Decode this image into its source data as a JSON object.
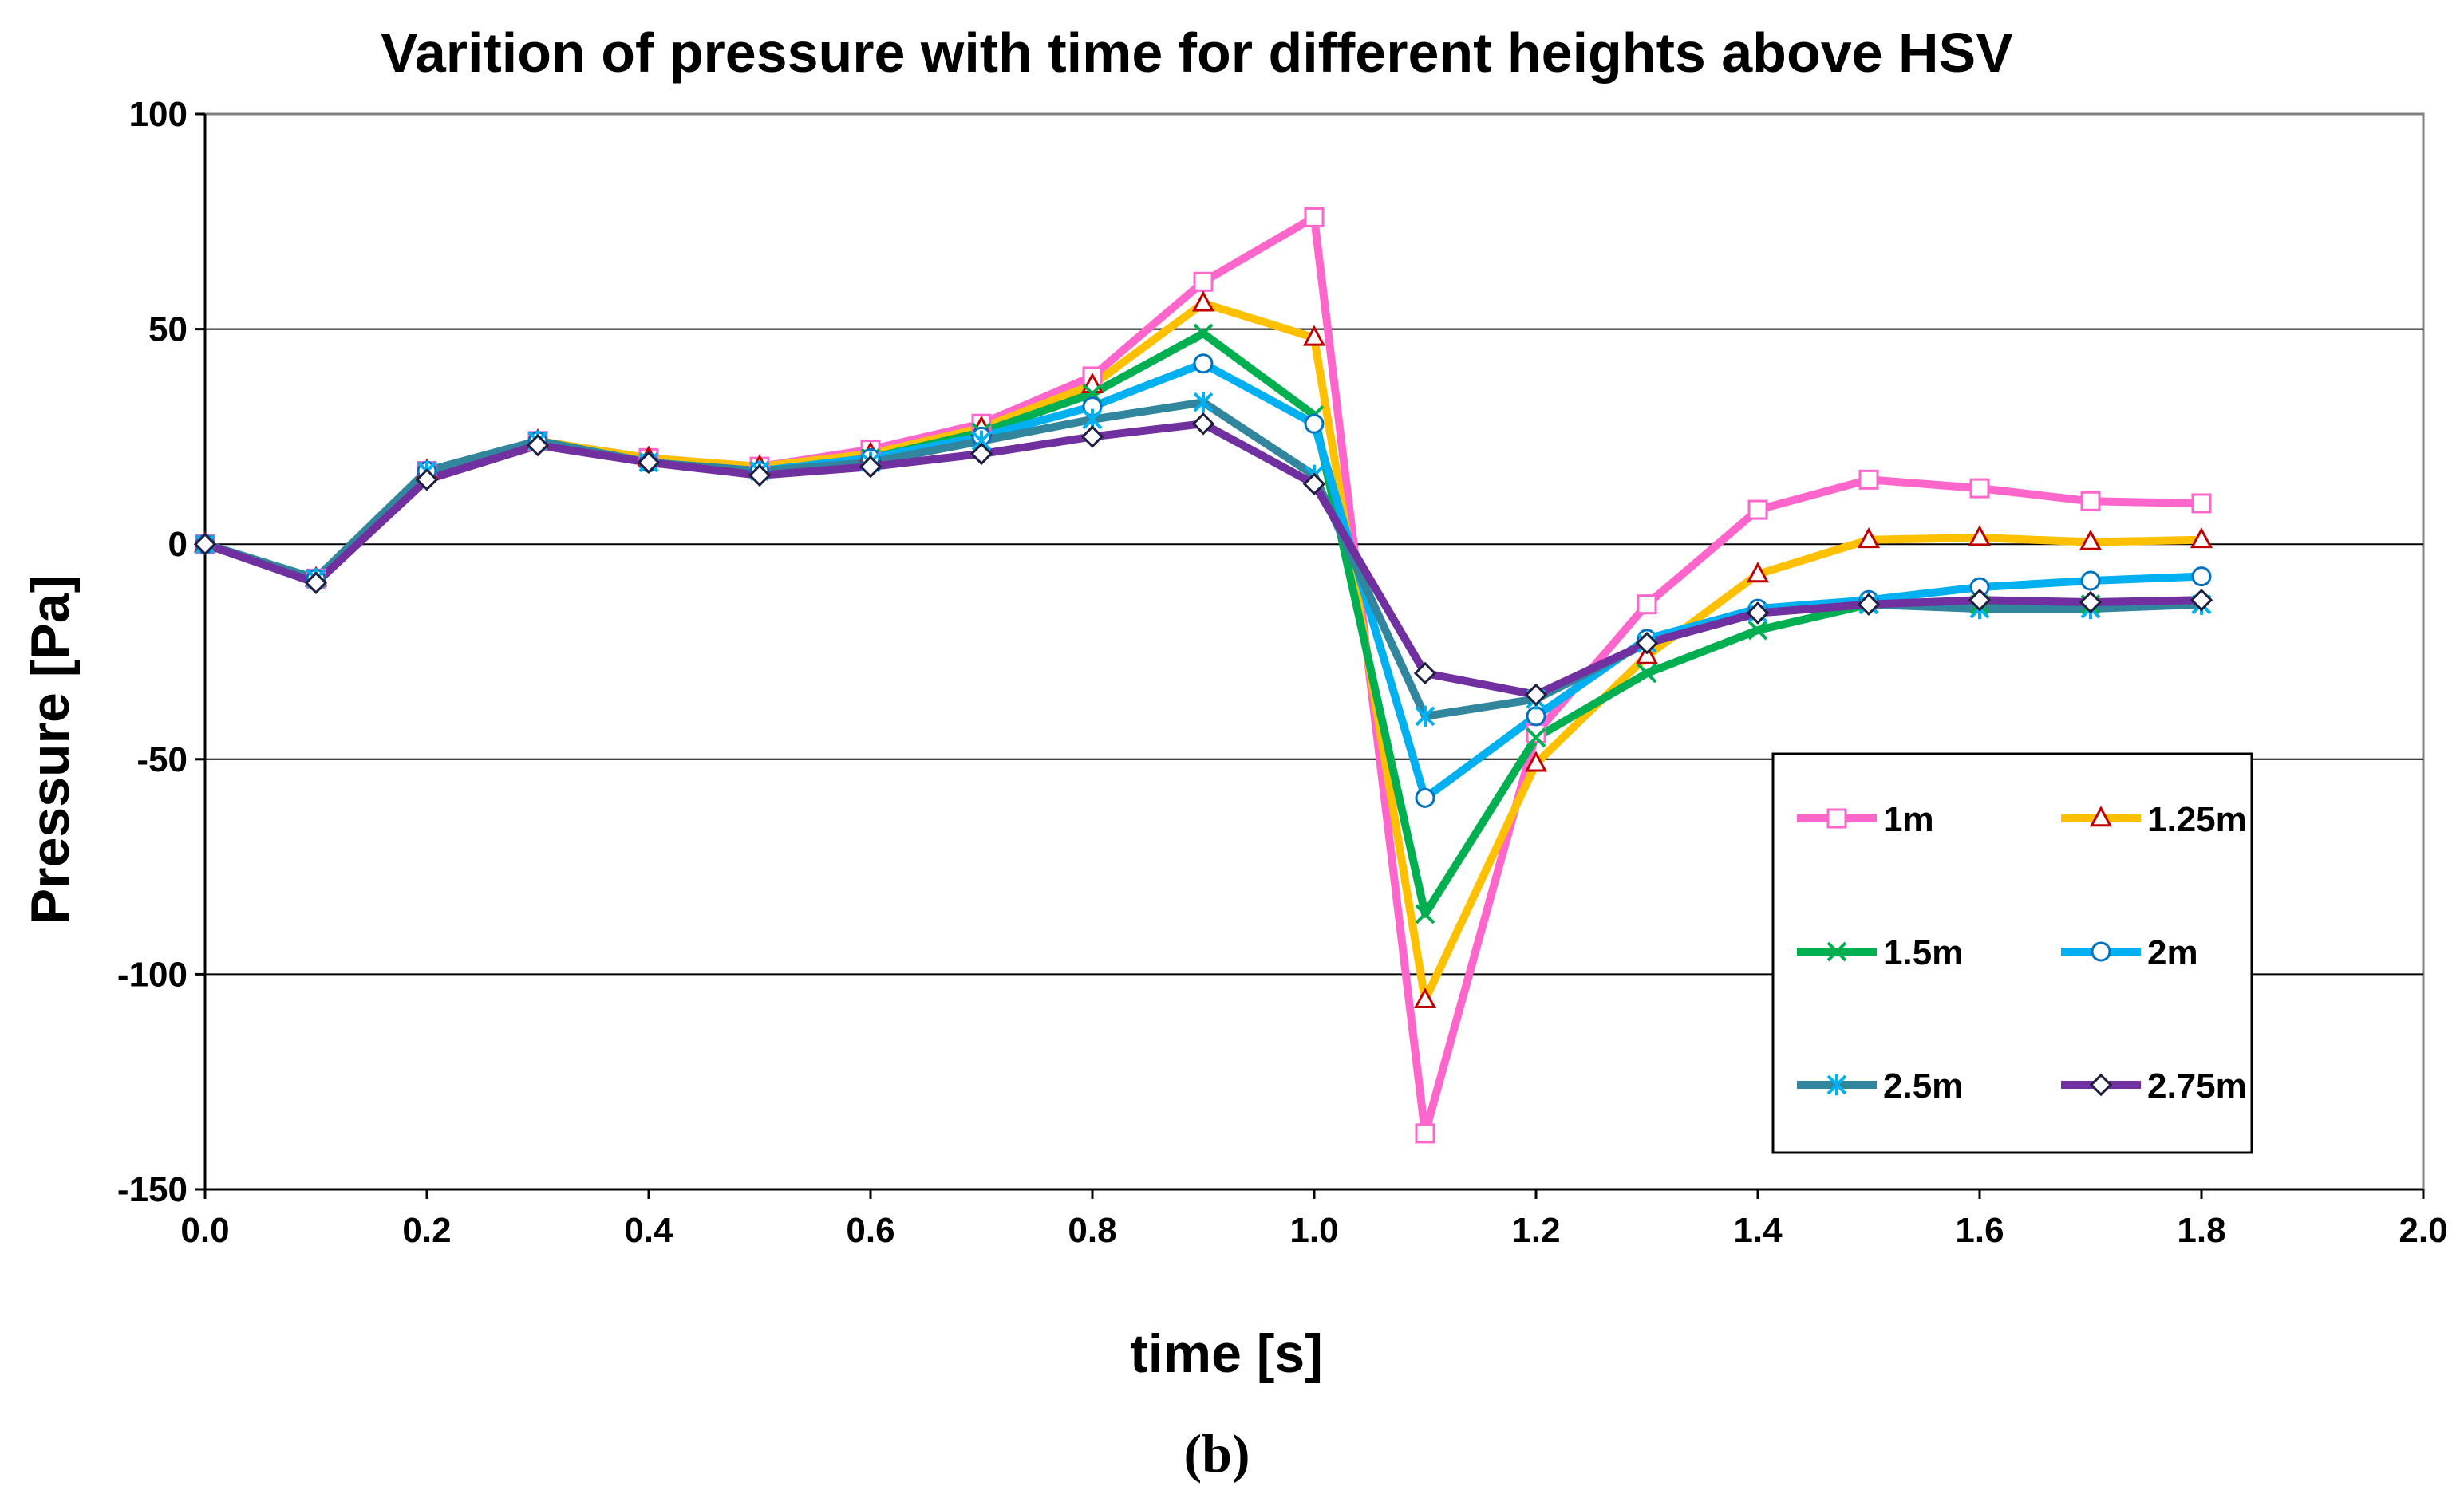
{
  "chart_data": {
    "type": "line",
    "title": "Varition of pressure with time for different heights above HSV",
    "xlabel": "time [s]",
    "ylabel": "Pressure [Pa]",
    "caption": "(b)",
    "xlim": [
      0.0,
      2.0
    ],
    "ylim": [
      -150,
      100
    ],
    "x_ticks": [
      "0.0",
      "0.2",
      "0.4",
      "0.6",
      "0.8",
      "1.0",
      "1.2",
      "1.4",
      "1.6",
      "1.8",
      "2.0"
    ],
    "y_ticks": [
      "100",
      "50",
      "0",
      "-50",
      "-100",
      "-150"
    ],
    "grid": "horizontal",
    "legend_position": "bottom-right",
    "x": [
      0.0,
      0.1,
      0.2,
      0.3,
      0.4,
      0.5,
      0.6,
      0.7,
      0.8,
      0.9,
      1.0,
      1.1,
      1.2,
      1.3,
      1.4,
      1.5,
      1.6,
      1.7,
      1.8
    ],
    "series": [
      {
        "name": "1m",
        "color": "#ff66cc",
        "marker": "square",
        "values": [
          0,
          -8,
          17,
          24,
          20,
          18,
          22,
          28,
          39,
          61,
          76,
          -137,
          -44,
          -14,
          8,
          15,
          13,
          10,
          9.5
        ]
      },
      {
        "name": "1.25m",
        "color": "#ffc000",
        "marker": "triangle",
        "values": [
          0,
          -8,
          17,
          24,
          20,
          18,
          21,
          27,
          37,
          56,
          48,
          -106,
          -51,
          -26,
          -7,
          1,
          1.5,
          0.5,
          1
        ]
      },
      {
        "name": "1.5m",
        "color": "#00b050",
        "marker": "x",
        "values": [
          0,
          -8,
          17,
          24,
          19,
          17,
          20,
          26,
          35,
          49,
          30,
          -86,
          -45,
          -30,
          -20,
          -14,
          -14,
          -14,
          -14
        ]
      },
      {
        "name": "2m",
        "color": "#00b0f0",
        "marker": "circle",
        "values": [
          0,
          -8,
          17,
          24,
          19,
          17,
          20,
          25,
          32,
          42,
          28,
          -59,
          -40,
          -22,
          -15,
          -13,
          -10,
          -8.5,
          -7.5
        ]
      },
      {
        "name": "2.5m",
        "color": "#31859c",
        "marker": "asterisk",
        "values": [
          0,
          -8,
          17,
          24,
          19,
          17,
          19,
          24,
          29,
          33,
          16,
          -40,
          -36,
          -23,
          -16,
          -14,
          -15,
          -15,
          -14
        ]
      },
      {
        "name": "2.75m",
        "color": "#7030a0",
        "marker": "diamond",
        "values": [
          0,
          -9,
          15,
          23,
          19,
          16,
          18,
          21,
          25,
          28,
          14,
          -30,
          -35,
          -23,
          -16,
          -14,
          -13,
          -13.5,
          -13
        ]
      }
    ]
  }
}
